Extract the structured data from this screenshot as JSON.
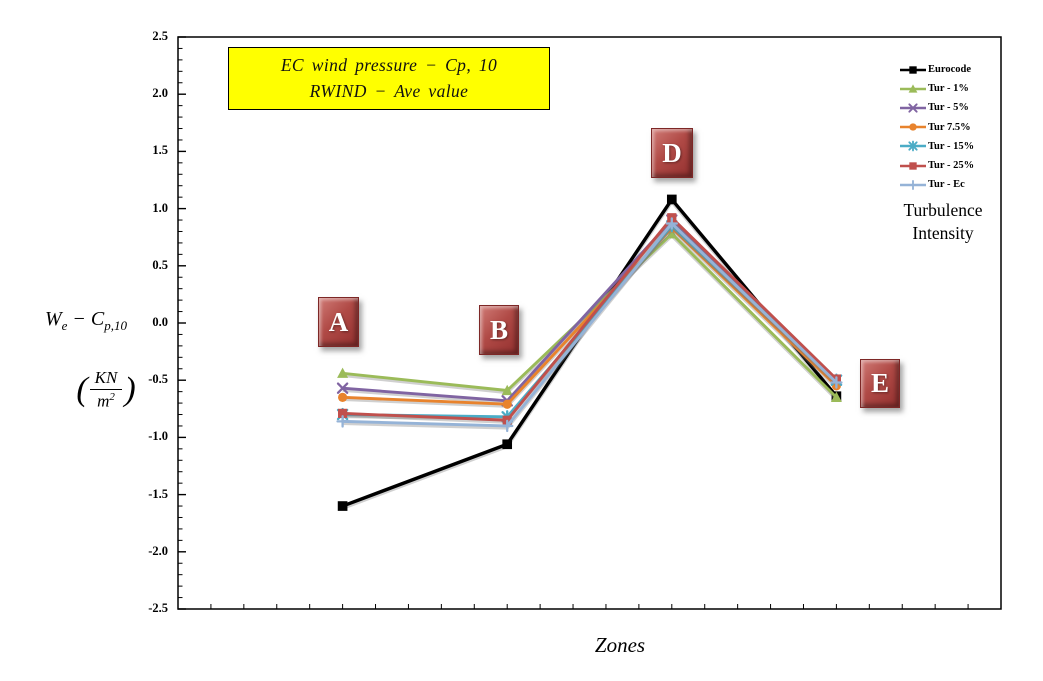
{
  "title_box": {
    "line1": "EC wind pressure  − Cp, 10",
    "line2": "RWIND  − Ave value",
    "bg_color": "#FFFF00"
  },
  "y_axis": {
    "title_var": "W",
    "title_var_sub": "e",
    "title_sep": "−",
    "title_coef": "C",
    "title_coef_sub": "p,10",
    "unit_open": "(",
    "unit_num": "KN",
    "unit_den": "m",
    "unit_den_sup": "2",
    "unit_close": ")",
    "tick_labels": [
      "2.5",
      "2.0",
      "1.5",
      "1.0",
      "0.5",
      "0.0",
      "-0.5",
      "-1.0",
      "-1.5",
      "-2.0",
      "-2.5"
    ]
  },
  "x_axis": {
    "title": "Zones"
  },
  "legend_footer": {
    "line1": "Turbulence",
    "line2": "Intensity"
  },
  "chart_data": {
    "type": "line",
    "title": "EC wind pressure − Cp,10 / RWIND − Ave value",
    "xlabel": "Zones",
    "ylabel": "We − Cp,10 (KN/m2)",
    "ylim": [
      -2.5,
      2.5
    ],
    "ytick_step": 0.5,
    "grid": false,
    "legend_position": "inside-top-right",
    "categories": [
      "A",
      "B",
      "D",
      "E"
    ],
    "series": [
      {
        "name": "Eurocode",
        "color": "#000000",
        "marker": "square",
        "values": [
          -1.6,
          -1.06,
          1.08,
          -0.64
        ]
      },
      {
        "name": "Tur - 1%",
        "color": "#9BBB59",
        "marker": "triangle",
        "values": [
          -0.44,
          -0.59,
          0.78,
          -0.65
        ]
      },
      {
        "name": "Tur - 5%",
        "color": "#8064A2",
        "marker": "x",
        "values": [
          -0.57,
          -0.68,
          0.9,
          -0.5
        ]
      },
      {
        "name": "Tur 7.5%",
        "color": "#E8832D",
        "marker": "circle",
        "values": [
          -0.65,
          -0.71,
          0.83,
          -0.55
        ]
      },
      {
        "name": "Tur - 15%",
        "color": "#4BACC6",
        "marker": "star",
        "values": [
          -0.8,
          -0.82,
          0.85,
          -0.5
        ]
      },
      {
        "name": "Tur - 25%",
        "color": "#C0504D",
        "marker": "square",
        "values": [
          -0.79,
          -0.85,
          0.92,
          -0.49
        ]
      },
      {
        "name": "Tur - Ec",
        "color": "#95B3D7",
        "marker": "plus",
        "values": [
          -0.86,
          -0.9,
          0.87,
          -0.52
        ]
      }
    ]
  }
}
